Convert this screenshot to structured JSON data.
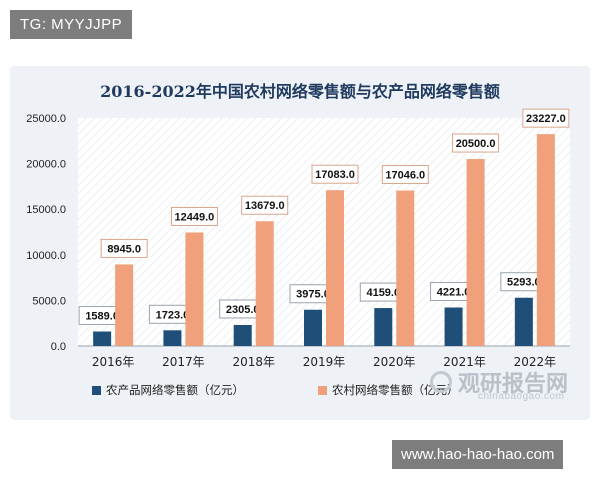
{
  "top_tag": "TG: MYYJJPP",
  "footer_tag": "www.hao-hao-hao.com",
  "watermark": {
    "brand": "观研报告网",
    "url": "chinabaogao.com"
  },
  "chart_data": {
    "type": "bar",
    "title": "2016-2022年中国农村网络零售额与农产品网络零售额",
    "categories": [
      "2016年",
      "2017年",
      "2018年",
      "2019年",
      "2020年",
      "2021年",
      "2022年"
    ],
    "series": [
      {
        "name": "农产品网络零售额（亿元）",
        "values": [
          1589.0,
          1723.0,
          2305.0,
          3975.0,
          4159.0,
          4221.0,
          5293.0
        ],
        "color": "#1f4e79"
      },
      {
        "name": "农村网络零售额（亿元）",
        "values": [
          8945.0,
          12449.0,
          13679.0,
          17083.0,
          17046.0,
          20500.0,
          23227.0
        ],
        "color": "#f0a07a"
      }
    ],
    "ylim": [
      0,
      25000
    ],
    "yticks": [
      "0.0",
      "5000.0",
      "10000.0",
      "15000.0",
      "20000.0",
      "25000.0"
    ],
    "grid": false,
    "legend": "bottom"
  }
}
